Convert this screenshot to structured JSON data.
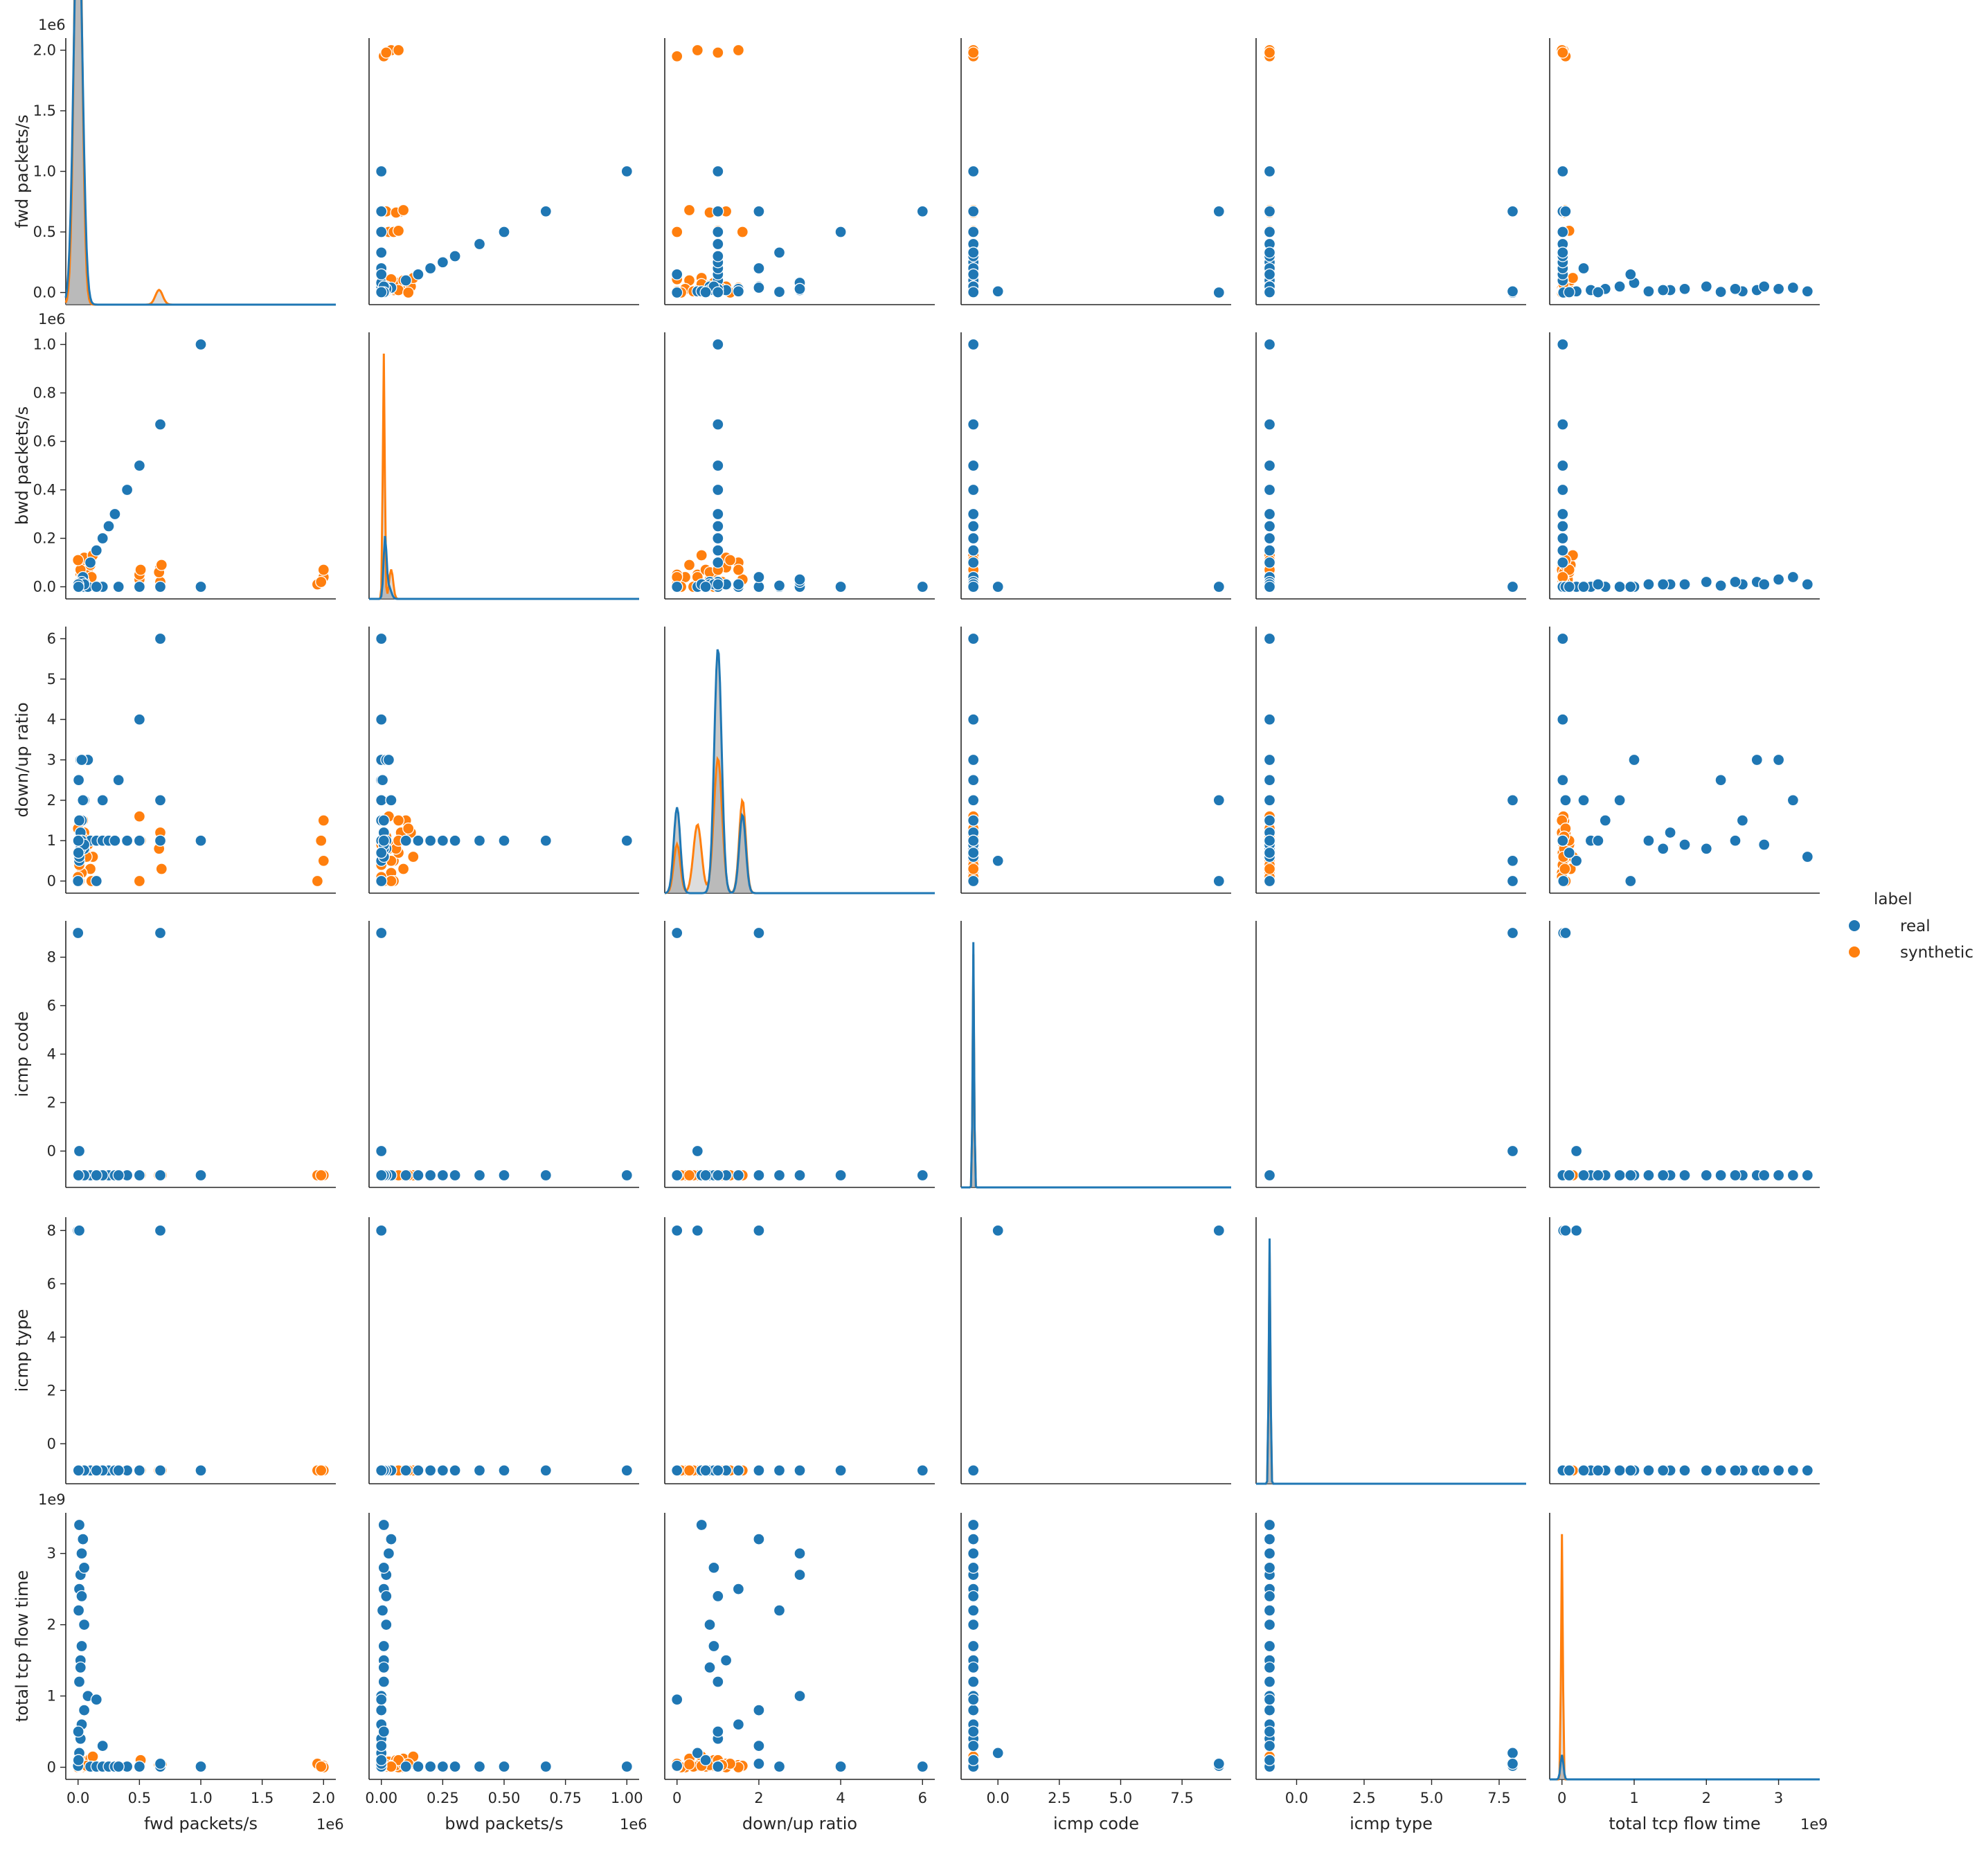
{
  "chart_data": {
    "type": "scatter",
    "subtype": "pairplot",
    "hue": "label",
    "legend": {
      "title": "label",
      "placement": "right",
      "entries": [
        {
          "name": "real",
          "color": "#1f77b4"
        },
        {
          "name": "synthetic",
          "color": "#ff7f0e"
        }
      ]
    },
    "colors": {
      "real": "#1f77b4",
      "synthetic": "#ff7f0e",
      "kde_fill": "#9e9e9e"
    },
    "variables": [
      {
        "name": "fwd packets/s",
        "label": "fwd packets/s",
        "offset": "1e6",
        "lim": [
          -0.1,
          2.1
        ],
        "ticks": [
          0,
          0.5,
          1,
          1.5,
          2
        ],
        "tick_labels": [
          "0.0",
          "0.5",
          "1.0",
          "1.5",
          "2.0"
        ]
      },
      {
        "name": "bwd packets/s",
        "label": "bwd packets/s",
        "offset": "1e6",
        "lim": [
          -0.05,
          1.05
        ],
        "ticks": [
          0,
          0.2,
          0.4,
          0.6,
          0.8,
          1.0
        ],
        "tick_labels": [
          "0.0",
          "0.2",
          "0.4",
          "0.6",
          "0.8",
          "1.0"
        ],
        "x_ticks": [
          0,
          0.25,
          0.5,
          0.75,
          1.0
        ],
        "x_tick_labels": [
          "0.00",
          "0.25",
          "0.50",
          "0.75",
          "1.00"
        ]
      },
      {
        "name": "down/up ratio",
        "label": "down/up ratio",
        "offset": "",
        "lim": [
          -0.3,
          6.3
        ],
        "ticks": [
          0,
          1,
          2,
          3,
          4,
          5,
          6
        ],
        "tick_labels": [
          "0",
          "1",
          "2",
          "3",
          "4",
          "5",
          "6"
        ],
        "x_ticks": [
          0,
          2,
          4,
          6
        ],
        "x_tick_labels": [
          "0",
          "2",
          "4",
          "6"
        ]
      },
      {
        "name": "icmp code",
        "label": "icmp code",
        "offset": "",
        "lim": [
          -1.5,
          9.5
        ],
        "ticks": [
          0,
          2,
          4,
          6,
          8
        ],
        "tick_labels": [
          "0",
          "2",
          "4",
          "6",
          "8"
        ],
        "x_ticks": [
          0,
          2.5,
          5,
          7.5
        ],
        "x_tick_labels": [
          "0.0",
          "2.5",
          "5.0",
          "7.5"
        ]
      },
      {
        "name": "icmp type",
        "label": "icmp type",
        "offset": "",
        "lim": [
          -1.5,
          8.5
        ],
        "ticks": [
          0,
          2,
          4,
          6,
          8
        ],
        "tick_labels": [
          "0",
          "2",
          "4",
          "6",
          "8"
        ],
        "x_ticks": [
          0,
          2.5,
          5,
          7.5
        ],
        "x_tick_labels": [
          "0.0",
          "2.5",
          "5.0",
          "7.5"
        ]
      },
      {
        "name": "total tcp flow time",
        "label": "total tcp flow time",
        "offset": "1e9",
        "lim": [
          -0.17,
          3.57
        ],
        "ticks": [
          0,
          1,
          2,
          3
        ],
        "tick_labels": [
          "0",
          "1",
          "2",
          "3"
        ]
      }
    ],
    "real": {
      "fwd": [
        0,
        0.01,
        0.02,
        0.03,
        0.05,
        0.08,
        0.1,
        0.15,
        0.2,
        0.25,
        0.3,
        0.4,
        0.5,
        0.67,
        1.0,
        0.33,
        0.5,
        0.67,
        1.0,
        0.2,
        0.67,
        0.15,
        0.01,
        0.02,
        0.03,
        0.05,
        0.005,
        0.01,
        0.02,
        0.03,
        0.04,
        0.01,
        0.02,
        0.03,
        0.05,
        0.002,
        0.003
      ],
      "bwd": [
        0,
        0,
        0,
        0,
        0,
        0,
        0.1,
        0.15,
        0.2,
        0.25,
        0.3,
        0.4,
        0.5,
        0.67,
        1.0,
        0,
        0,
        0,
        0,
        0,
        0,
        0,
        0.01,
        0.01,
        0.01,
        0.02,
        0.005,
        0.01,
        0.02,
        0.03,
        0.04,
        0.01,
        0.01,
        0.02,
        0.01,
        0.01,
        0
      ],
      "ratio": [
        0,
        0.5,
        1,
        1.5,
        2,
        3,
        1,
        1,
        1,
        1,
        1,
        1,
        1,
        1,
        1,
        2.5,
        4,
        6,
        1,
        2,
        2,
        0,
        1,
        1.2,
        0.9,
        0.8,
        2.5,
        1.5,
        3,
        3,
        2,
        0.6,
        0.8,
        1,
        0.9,
        1,
        0.7
      ],
      "icmp_code": [
        9,
        0,
        -1,
        -1,
        -1,
        -1,
        -1,
        -1,
        -1,
        -1,
        -1,
        -1,
        -1,
        -1,
        -1,
        -1,
        -1,
        -1,
        -1,
        -1,
        9,
        -1,
        -1,
        -1,
        -1,
        -1,
        -1,
        -1,
        -1,
        -1,
        -1,
        -1,
        -1,
        -1,
        -1,
        -1,
        -1
      ],
      "icmp_type": [
        8,
        8,
        -1,
        -1,
        -1,
        -1,
        -1,
        -1,
        -1,
        -1,
        -1,
        -1,
        -1,
        -1,
        -1,
        -1,
        -1,
        -1,
        -1,
        -1,
        8,
        -1,
        -1,
        -1,
        -1,
        -1,
        -1,
        -1,
        -1,
        -1,
        -1,
        -1,
        -1,
        -1,
        -1,
        -1,
        -1
      ],
      "tcp_time": [
        0.02,
        0.2,
        0.4,
        0.6,
        0.8,
        1.0,
        0.01,
        0.01,
        0.01,
        0.01,
        0.01,
        0.01,
        0.01,
        0.01,
        0.01,
        0.01,
        0.01,
        0.01,
        0.01,
        0.3,
        0.05,
        0.95,
        1.2,
        1.5,
        1.7,
        2.0,
        2.2,
        2.5,
        2.7,
        3.0,
        3.2,
        3.4,
        1.4,
        2.4,
        2.8,
        0.5,
        0.1
      ]
    },
    "synthetic": {
      "fwd": [
        0.01,
        0.02,
        0.03,
        0.04,
        0.05,
        0.06,
        0.08,
        0.1,
        0.12,
        0.05,
        0.03,
        0.02,
        0.5,
        0.67,
        0.5,
        0.67,
        1.95,
        2.0,
        2.0,
        1.98,
        0.0,
        0.01,
        0.02,
        0.66,
        0.68,
        0.51,
        0.0,
        0.03,
        0.07,
        0.11
      ],
      "bwd": [
        0.02,
        0.05,
        0.08,
        0.1,
        0.12,
        0.03,
        0.06,
        0.09,
        0.13,
        0.01,
        0.04,
        0.07,
        0.03,
        0.02,
        0.05,
        0.08,
        0.01,
        0.04,
        0.07,
        0.02,
        0.0,
        0.0,
        0.0,
        0.06,
        0.09,
        0.07,
        0.11,
        0.02,
        0.01,
        0.04
      ],
      "ratio": [
        0,
        0.5,
        1,
        1.5,
        1.2,
        0.8,
        0.9,
        0.3,
        0.6,
        1.0,
        0.2,
        0.7,
        1.6,
        1.0,
        0,
        1.2,
        0,
        0.5,
        1.5,
        1.0,
        0.1,
        0.4,
        0.9,
        0.8,
        0.3,
        1.0,
        1.3,
        1.1,
        0.6,
        0.0
      ],
      "icmp_code": [
        -1,
        -1,
        -1,
        -1,
        -1,
        -1,
        -1,
        -1,
        -1,
        -1,
        -1,
        -1,
        -1,
        -1,
        -1,
        -1,
        -1,
        -1,
        -1,
        -1,
        -1,
        -1,
        -1,
        -1,
        -1,
        -1,
        -1,
        -1,
        -1,
        -1
      ],
      "icmp_type": [
        -1,
        -1,
        -1,
        -1,
        -1,
        -1,
        -1,
        -1,
        -1,
        -1,
        -1,
        -1,
        -1,
        -1,
        -1,
        -1,
        -1,
        -1,
        -1,
        -1,
        -1,
        -1,
        -1,
        -1,
        -1,
        -1,
        -1,
        -1,
        -1,
        -1
      ],
      "tcp_time": [
        0.0,
        0.01,
        0.02,
        0.03,
        0.05,
        0.08,
        0.1,
        0.12,
        0.15,
        0.02,
        0.0,
        0.01,
        0.02,
        0.03,
        0.01,
        0.0,
        0.05,
        0.02,
        0.0,
        0.01,
        0.0,
        0.01,
        0.02,
        0.03,
        0.04,
        0.1,
        0.05,
        0.03,
        0.02,
        0.01
      ]
    }
  }
}
